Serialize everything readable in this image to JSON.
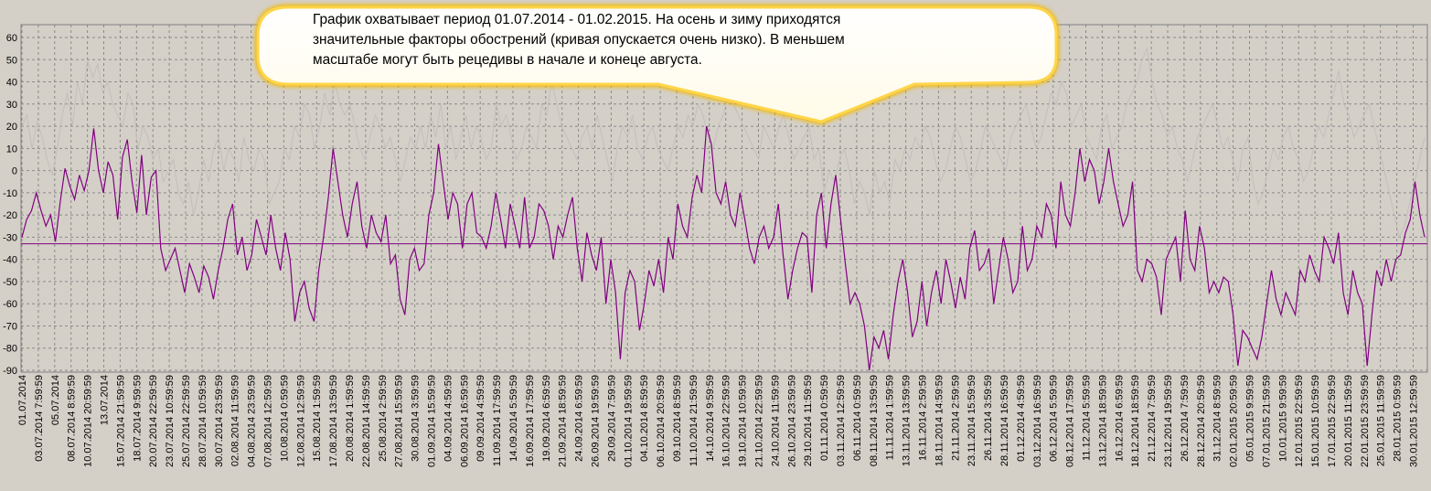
{
  "callout": {
    "lines": [
      "График охватывает период 01.07.2014 - 01.02.2015. На осень и зиму приходятся",
      "значительные факторы обострений (кривая опускается очень низко). В меньшем",
      "масштабе могут быть рецедивы в начале и конеце августа."
    ]
  },
  "colors": {
    "background": "#d4d0c8",
    "plot_background": "#d4d0c8",
    "grid": "#8a8a8a",
    "main_line": "#800080",
    "secondary_line": "#c2bebb",
    "reference_line": "#800080",
    "callout_fill": "#ffffff",
    "callout_glow": "#ffd54a"
  },
  "chart_data": {
    "type": "line",
    "title": "",
    "xlabel": "",
    "ylabel": "",
    "ylim": [
      -90,
      60
    ],
    "yticks": [
      60,
      50,
      40,
      30,
      20,
      10,
      0,
      -10,
      -20,
      -30,
      -40,
      -50,
      -60,
      -70,
      -80,
      -90
    ],
    "grid": true,
    "legend": "none",
    "reference_line": -33,
    "x_tick_labels": [
      "01.07.2014",
      "03.07.2014 7:59:59",
      "05.07.2014",
      "08.07.2014 8:59:59",
      "10.07.2014 20:59:59",
      "13.07.2014",
      "15.07.2014 21:59:59",
      "18.07.2014 9:59:59",
      "20.07.2014 22:59:59",
      "23.07.2014 10:59:59",
      "25.07.2014 22:59:59",
      "28.07.2014 10:59:59",
      "30.07.2014 23:59:59",
      "02.08.2014 11:59:59",
      "04.08.2014 23:59:59",
      "07.08.2014 12:59:59",
      "10.08.2014 0:59:59",
      "12.08.2014 12:59:59",
      "15.08.2014 1:59:59",
      "17.08.2014 13:59:59",
      "20.08.2014 1:59:59",
      "22.08.2014 14:59:59",
      "25.08.2014 2:59:59",
      "27.08.2014 15:59:59",
      "30.08.2014 3:59:59",
      "01.09.2014 15:59:59",
      "04.09.2014 4:59:59",
      "06.09.2014 16:59:59",
      "09.09.2014 4:59:59",
      "11.09.2014 17:59:59",
      "14.09.2014 5:59:59",
      "16.09.2014 17:59:59",
      "19.09.2014 6:59:59",
      "21.09.2014 18:59:59",
      "24.09.2014 6:59:59",
      "26.09.2014 19:59:59",
      "29.09.2014 7:59:59",
      "01.10.2014 19:59:59",
      "04.10.2014 8:59:59",
      "06.10.2014 20:59:59",
      "09.10.2014 8:59:59",
      "11.10.2014 21:59:59",
      "14.10.2014 9:59:59",
      "16.10.2014 22:59:59",
      "19.10.2014 10:59:59",
      "21.10.2014 22:59:59",
      "24.10.2014 11:59:59",
      "26.10.2014 23:59:59",
      "29.10.2014 11:59:59",
      "01.11.2014 0:59:59",
      "03.11.2014 12:59:59",
      "06.11.2014 0:59:59",
      "08.11.2014 13:59:59",
      "11.11.2014 1:59:59",
      "13.11.2014 13:59:59",
      "16.11.2014 2:59:59",
      "18.11.2014 14:59:59",
      "21.11.2014 2:59:59",
      "23.11.2014 15:59:59",
      "26.11.2014 3:59:59",
      "28.11.2014 16:59:59",
      "01.12.2014 4:59:59",
      "03.12.2014 16:59:59",
      "06.12.2014 5:59:59",
      "08.12.2014 17:59:59",
      "11.12.2014 5:59:59",
      "13.12.2014 18:59:59",
      "16.12.2014 6:59:59",
      "18.12.2014 18:59:59",
      "21.12.2014 7:59:59",
      "23.12.2014 19:59:59",
      "26.12.2014 7:59:59",
      "28.12.2014 20:59:59",
      "31.12.2014 8:59:59",
      "02.01.2015 20:59:59",
      "05.01.2015 9:59:59",
      "07.01.2015 21:59:59",
      "10.01.2015 9:59:59",
      "12.01.2015 22:59:59",
      "15.01.2015 10:59:59",
      "17.01.2015 22:59:59",
      "20.01.2015 11:59:59",
      "22.01.2015 23:59:59",
      "25.01.2015 11:59:59",
      "28.01.2015 0:59:59",
      "30.01.2015 12:59:59"
    ],
    "series": [
      {
        "role": "main",
        "values": [
          -30,
          -22,
          -18,
          -10,
          -18,
          -25,
          -20,
          -32,
          -14,
          1,
          -7,
          -13,
          -2,
          -9,
          0,
          19,
          0,
          -10,
          4,
          -2,
          -22,
          6,
          14,
          -5,
          -19,
          7,
          -20,
          -3,
          0,
          -35,
          -45,
          -40,
          -35,
          -45,
          -55,
          -42,
          -48,
          -55,
          -43,
          -48,
          -58,
          -45,
          -35,
          -22,
          -15,
          -38,
          -30,
          -45,
          -38,
          -22,
          -30,
          -38,
          -20,
          -35,
          -45,
          -28,
          -40,
          -68,
          -55,
          -50,
          -62,
          -68,
          -45,
          -30,
          -12,
          10,
          -5,
          -20,
          -30,
          -15,
          -5,
          -25,
          -35,
          -20,
          -28,
          -32,
          -20,
          -42,
          -38,
          -58,
          -65,
          -40,
          -35,
          -45,
          -42,
          -20,
          -10,
          12,
          -5,
          -22,
          -10,
          -15,
          -35,
          -15,
          -10,
          -28,
          -30,
          -35,
          -25,
          -10,
          -22,
          -35,
          -15,
          -25,
          -35,
          -12,
          -35,
          -30,
          -15,
          -18,
          -25,
          -40,
          -25,
          -30,
          -20,
          -12,
          -35,
          -50,
          -28,
          -38,
          -45,
          -30,
          -60,
          -40,
          -55,
          -85,
          -55,
          -45,
          -50,
          -72,
          -60,
          -45,
          -52,
          -40,
          -55,
          -30,
          -40,
          -15,
          -25,
          -30,
          -12,
          -2,
          -10,
          20,
          12,
          -10,
          -15,
          -5,
          -20,
          -25,
          -10,
          -22,
          -35,
          -42,
          -30,
          -25,
          -35,
          -30,
          -15,
          -38,
          -58,
          -45,
          -35,
          -28,
          -30,
          -55,
          -20,
          -10,
          -35,
          -15,
          -2,
          -22,
          -42,
          -60,
          -55,
          -60,
          -70,
          -90,
          -75,
          -80,
          -72,
          -85,
          -65,
          -50,
          -40,
          -55,
          -75,
          -68,
          -50,
          -70,
          -55,
          -45,
          -60,
          -40,
          -50,
          -62,
          -48,
          -58,
          -35,
          -27,
          -45,
          -42,
          -35,
          -60,
          -45,
          -30,
          -40,
          -55,
          -50,
          -25,
          -45,
          -40,
          -25,
          -30,
          -15,
          -20,
          -35,
          -5,
          -20,
          -25,
          -10,
          10,
          -5,
          5,
          0,
          -15,
          -5,
          10,
          -5,
          -15,
          -25,
          -20,
          -5,
          -45,
          -50,
          -40,
          -42,
          -48,
          -65,
          -40,
          -35,
          -30,
          -50,
          -18,
          -40,
          -45,
          -25,
          -35,
          -55,
          -50,
          -55,
          -48,
          -50,
          -65,
          -88,
          -72,
          -75,
          -80,
          -85,
          -75,
          -60,
          -45,
          -58,
          -65,
          -55,
          -60,
          -65,
          -45,
          -50,
          -38,
          -45,
          -50,
          -30,
          -35,
          -42,
          -28,
          -55,
          -65,
          -45,
          -55,
          -60,
          -88,
          -65,
          -45,
          -52,
          -40,
          -50,
          -40,
          -38,
          -28,
          -22,
          -5,
          -20,
          -30
        ]
      },
      {
        "role": "secondary",
        "values": [
          20,
          25,
          10,
          22,
          15,
          5,
          -2,
          10,
          25,
          35,
          20,
          40,
          30,
          50,
          42,
          48,
          35,
          40,
          30,
          25,
          20,
          35,
          30,
          10,
          20,
          15,
          5,
          10,
          -5,
          0,
          5,
          -10,
          -15,
          -5,
          -20,
          -10,
          5,
          -5,
          10,
          15,
          0,
          10,
          5,
          -5,
          15,
          5,
          0,
          10,
          5,
          -15,
          -10,
          -5,
          10,
          5,
          20,
          15,
          30,
          25,
          10,
          20,
          35,
          25,
          40,
          30,
          25,
          30,
          20,
          10,
          5,
          15,
          25,
          20,
          10,
          15,
          5,
          -5,
          5,
          15,
          10,
          20,
          10,
          25,
          15,
          30,
          10,
          20,
          5,
          15,
          25,
          10,
          20,
          15,
          5,
          10,
          30,
          20,
          25,
          15,
          5,
          10,
          20,
          15,
          10,
          30,
          25,
          40,
          30,
          20,
          15,
          10,
          5,
          15,
          20,
          10,
          25,
          15,
          5,
          -5,
          10,
          20,
          15,
          25,
          10,
          5,
          15,
          20,
          10,
          5,
          0,
          10,
          20,
          15,
          25,
          20,
          30,
          25,
          15,
          10,
          20,
          25,
          35,
          30,
          25,
          20,
          15,
          10,
          5,
          20,
          15,
          10,
          20,
          25,
          15,
          5,
          10,
          15,
          20,
          5,
          10,
          -10,
          0,
          -5,
          5,
          10,
          0,
          -15,
          -5,
          -10,
          -20,
          0,
          -10,
          -5,
          -15,
          5,
          0,
          10,
          5,
          15,
          10,
          20,
          15,
          5,
          -5,
          0,
          10,
          20,
          15,
          5,
          -5,
          0,
          10,
          20,
          15,
          10,
          5,
          0,
          15,
          20,
          25,
          30,
          20,
          10,
          15,
          25,
          35,
          30,
          40,
          35,
          20,
          25,
          30,
          15,
          10,
          5,
          20,
          25,
          10,
          15,
          20,
          30,
          35,
          40,
          50,
          55,
          40,
          30,
          25,
          15,
          20,
          10,
          5,
          -5,
          5,
          15,
          20,
          25,
          30,
          20,
          10,
          15,
          5,
          -5,
          10,
          15,
          -5,
          -15,
          -10,
          0,
          10,
          5,
          15,
          20,
          10,
          5,
          -5,
          0,
          10,
          20,
          15,
          25,
          35,
          45,
          30,
          25,
          15,
          20,
          25,
          30,
          20,
          10,
          0,
          -10,
          -20,
          -30,
          -25,
          -15,
          -5,
          5,
          15
        ]
      }
    ]
  }
}
